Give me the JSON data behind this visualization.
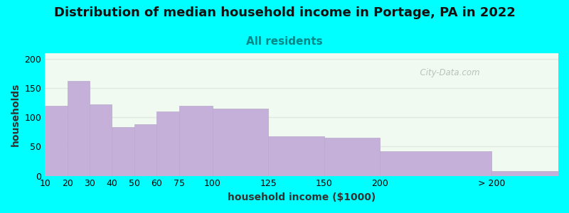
{
  "title": "Distribution of median household income in Portage, PA in 2022",
  "subtitle": "All residents",
  "xlabel": "household income ($1000)",
  "ylabel": "households",
  "background_color": "#00FFFF",
  "bar_color": "#C4B0D8",
  "bar_edge_color": "#b8a8cc",
  "categories": [
    "10",
    "20",
    "30",
    "40",
    "50",
    "60",
    "75",
    "100",
    "125",
    "150",
    "200",
    "> 200"
  ],
  "values": [
    120,
    163,
    122,
    83,
    88,
    110,
    120,
    115,
    68,
    65,
    42,
    8
  ],
  "bin_edges": [
    0,
    10,
    20,
    30,
    40,
    50,
    60,
    75,
    100,
    125,
    150,
    200,
    230
  ],
  "ylim": [
    0,
    210
  ],
  "yticks": [
    0,
    50,
    100,
    150,
    200
  ],
  "title_fontsize": 13,
  "subtitle_fontsize": 11,
  "subtitle_color": "#008888",
  "axis_label_fontsize": 10,
  "tick_fontsize": 9,
  "watermark_text": "  City-Data.com",
  "watermark_color": "#b0b8b0",
  "plot_bg_color": "#f0faf0",
  "grid_color": "#e0e8e0"
}
